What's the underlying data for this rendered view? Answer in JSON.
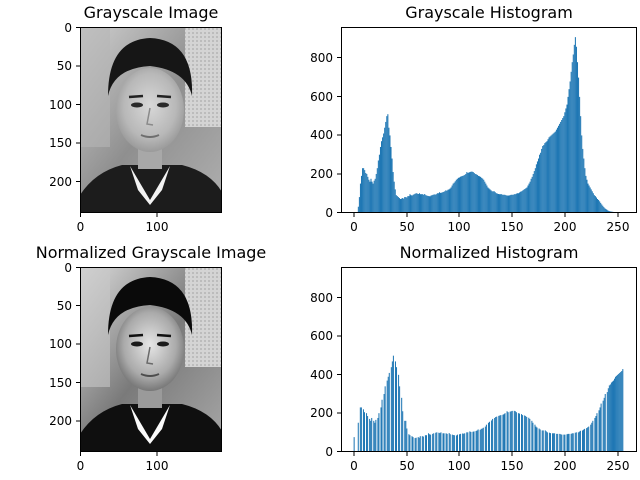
{
  "colors": {
    "bar": "#1f77b4",
    "axes": "#000000",
    "background": "#ffffff"
  },
  "chart_data": [
    {
      "type": "image",
      "title": "Grayscale Image",
      "image": "grayscale-portrait-photo",
      "xticks": [
        "0",
        "100"
      ],
      "yticks": [
        "0",
        "50",
        "100",
        "150",
        "200"
      ]
    },
    {
      "type": "bar",
      "title": "Grayscale Histogram",
      "xlim": [
        -12,
        268
      ],
      "ylim": [
        0,
        960
      ],
      "xticks": [
        "0",
        "50",
        "100",
        "150",
        "200",
        "250"
      ],
      "yticks": [
        "0",
        "200",
        "400",
        "600",
        "800"
      ],
      "x_min": 0,
      "x_max": 255,
      "values": [
        0,
        0,
        0,
        0,
        30,
        80,
        150,
        190,
        230,
        230,
        220,
        205,
        200,
        185,
        170,
        160,
        175,
        160,
        150,
        165,
        175,
        200,
        230,
        270,
        300,
        340,
        370,
        390,
        410,
        440,
        470,
        500,
        510,
        440,
        400,
        340,
        280,
        210,
        160,
        120,
        90,
        85,
        80,
        75,
        70,
        72,
        75,
        72,
        80,
        80,
        78,
        85,
        85,
        95,
        90,
        88,
        92,
        95,
        98,
        100,
        98,
        96,
        100,
        95,
        95,
        95,
        92,
        96,
        90,
        88,
        86,
        85,
        84,
        88,
        90,
        92,
        94,
        93,
        95,
        100,
        100,
        105,
        102,
        103,
        105,
        107,
        110,
        115,
        113,
        118,
        120,
        124,
        130,
        140,
        150,
        155,
        162,
        170,
        175,
        180,
        182,
        186,
        188,
        190,
        192,
        195,
        200,
        210,
        205,
        208,
        210,
        212,
        212,
        210,
        205,
        200,
        198,
        195,
        190,
        188,
        185,
        180,
        176,
        170,
        160,
        150,
        140,
        130,
        125,
        120,
        115,
        110,
        110,
        110,
        105,
        100,
        98,
        96,
        95,
        95,
        95,
        92,
        92,
        92,
        90,
        88,
        88,
        88,
        90,
        92,
        92,
        92,
        95,
        95,
        98,
        100,
        100,
        104,
        108,
        110,
        114,
        118,
        122,
        126,
        130,
        140,
        150,
        160,
        175,
        185,
        200,
        215,
        230,
        250,
        265,
        280,
        300,
        310,
        330,
        345,
        350,
        360,
        365,
        370,
        380,
        390,
        395,
        400,
        405,
        410,
        415,
        420,
        430,
        440,
        450,
        460,
        470,
        480,
        490,
        500,
        520,
        540,
        560,
        600,
        640,
        680,
        730,
        780,
        820,
        870,
        910,
        860,
        780,
        700,
        600,
        500,
        400,
        330,
        280,
        230,
        190,
        170,
        150,
        140,
        130,
        120,
        110,
        100,
        90,
        85,
        78,
        70,
        65,
        58,
        50,
        42,
        35,
        28,
        22,
        18,
        14,
        10,
        8,
        6,
        5,
        4,
        3,
        2,
        1,
        0,
        0,
        0,
        0,
        0,
        0,
        0
      ]
    },
    {
      "type": "image",
      "title": "Normalized Grayscale Image",
      "image": "normalized-grayscale-portrait-photo",
      "xticks": [
        "0",
        "100"
      ],
      "yticks": [
        "0",
        "50",
        "100",
        "150",
        "200"
      ]
    },
    {
      "type": "bar",
      "title": "Normalized Histogram",
      "xlim": [
        -12,
        268
      ],
      "ylim": [
        0,
        960
      ],
      "xticks": [
        "0",
        "50",
        "100",
        "150",
        "200",
        "250"
      ],
      "yticks": [
        "0",
        "200",
        "400",
        "600",
        "800"
      ],
      "x_min": 0,
      "x_max": 255,
      "values": [
        75,
        0,
        0,
        0,
        150,
        0,
        230,
        230,
        0,
        220,
        205,
        0,
        200,
        185,
        0,
        170,
        160,
        175,
        0,
        160,
        150,
        165,
        0,
        175,
        200,
        0,
        230,
        270,
        0,
        300,
        340,
        0,
        370,
        390,
        410,
        0,
        440,
        470,
        500,
        0,
        470,
        440,
        0,
        400,
        340,
        0,
        280,
        210,
        0,
        160,
        160,
        120,
        0,
        90,
        85,
        0,
        80,
        75,
        0,
        70,
        72,
        0,
        75,
        72,
        80,
        0,
        80,
        78,
        0,
        85,
        85,
        0,
        95,
        90,
        88,
        0,
        92,
        95,
        0,
        98,
        100,
        0,
        98,
        96,
        100,
        0,
        95,
        95,
        0,
        95,
        92,
        0,
        96,
        90,
        0,
        88,
        86,
        85,
        0,
        84,
        88,
        0,
        90,
        92,
        0,
        94,
        93,
        95,
        0,
        100,
        100,
        0,
        105,
        102,
        0,
        103,
        105,
        0,
        107,
        110,
        115,
        0,
        113,
        118,
        120,
        124,
        0,
        130,
        140,
        0,
        150,
        155,
        0,
        162,
        170,
        0,
        175,
        180,
        182,
        0,
        186,
        188,
        190,
        0,
        192,
        195,
        200,
        0,
        210,
        205,
        0,
        208,
        210,
        212,
        0,
        212,
        210,
        205,
        0,
        200,
        198,
        0,
        195,
        190,
        0,
        188,
        185,
        180,
        0,
        176,
        170,
        0,
        160,
        150,
        0,
        140,
        130,
        125,
        0,
        120,
        115,
        0,
        110,
        110,
        0,
        110,
        105,
        100,
        0,
        98,
        96,
        0,
        95,
        95,
        95,
        0,
        92,
        92,
        0,
        92,
        90,
        88,
        0,
        88,
        88,
        0,
        90,
        92,
        92,
        0,
        92,
        95,
        95,
        0,
        98,
        100,
        0,
        100,
        104,
        108,
        0,
        110,
        114,
        118,
        0,
        122,
        126,
        130,
        0,
        140,
        150,
        160,
        0,
        175,
        185,
        200,
        0,
        215,
        230,
        250,
        0,
        265,
        280,
        300,
        0,
        310,
        330,
        345,
        350,
        360,
        365,
        370,
        380,
        390,
        395,
        400,
        405,
        410,
        415,
        420,
        430
      ]
    }
  ]
}
